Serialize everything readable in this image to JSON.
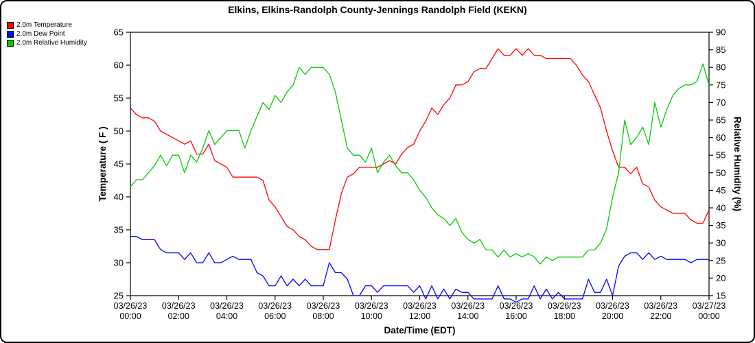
{
  "chart_data": {
    "type": "line",
    "title": "Elkins, Elkins-Randolph County-Jennings Randolph Field (KEKN)",
    "xlabel": "Date/Time (EDT)",
    "grid": false,
    "legend_position": "top-left",
    "left_axis": {
      "label": "Temperature ( F )",
      "min": 25,
      "max": 65,
      "ticks": [
        25,
        30,
        35,
        40,
        45,
        50,
        55,
        60,
        65
      ]
    },
    "right_axis": {
      "label": "Relative Humidity (%)",
      "min": 15,
      "max": 90,
      "ticks": [
        15,
        20,
        25,
        30,
        35,
        40,
        45,
        50,
        55,
        60,
        65,
        70,
        75,
        80,
        85,
        90
      ]
    },
    "x_axis": {
      "start_hour": 0,
      "end_hour": 24,
      "step_hours": 0.25,
      "tick_labels": [
        {
          "hour": 0,
          "date": "03/26/23",
          "time": "00:00"
        },
        {
          "hour": 2,
          "date": "03/26/23",
          "time": "02:00"
        },
        {
          "hour": 4,
          "date": "03/26/23",
          "time": "04:00"
        },
        {
          "hour": 6,
          "date": "03/26/23",
          "time": "06:00"
        },
        {
          "hour": 8,
          "date": "03/26/23",
          "time": "08:00"
        },
        {
          "hour": 10,
          "date": "03/26/23",
          "time": "10:00"
        },
        {
          "hour": 12,
          "date": "03/26/23",
          "time": "12:00"
        },
        {
          "hour": 14,
          "date": "03/26/23",
          "time": "14:00"
        },
        {
          "hour": 16,
          "date": "03/26/23",
          "time": "16:00"
        },
        {
          "hour": 18,
          "date": "03/26/23",
          "time": "18:00"
        },
        {
          "hour": 20,
          "date": "03/26/23",
          "time": "20:00"
        },
        {
          "hour": 22,
          "date": "03/26/23",
          "time": "22:00"
        },
        {
          "hour": 24,
          "date": "03/27/23",
          "time": "00:00"
        }
      ]
    },
    "series": [
      {
        "name": "2.0m Temperature",
        "axis": "left",
        "color": "#ff0000",
        "values": [
          53.5,
          52.5,
          52,
          52,
          51.5,
          50,
          49.5,
          49,
          48.5,
          48,
          48.5,
          46.5,
          46.5,
          48,
          45.5,
          45,
          44.5,
          43,
          43,
          43,
          43,
          43,
          42.5,
          39.5,
          38.5,
          37,
          35.5,
          35,
          34,
          33.5,
          32.5,
          32,
          32,
          32,
          36.5,
          40.5,
          43,
          43.5,
          44.5,
          44.5,
          44.5,
          44.5,
          45,
          45.5,
          45,
          46.5,
          47.5,
          48,
          50,
          51.5,
          53.5,
          52.5,
          54,
          55,
          57,
          57,
          57.5,
          59,
          59.5,
          59.5,
          61,
          62.5,
          61.5,
          61.5,
          62.5,
          61.5,
          62.5,
          61.5,
          61.5,
          61,
          61,
          61,
          61,
          61,
          60,
          58.5,
          57.5,
          55.5,
          53.5,
          50,
          47,
          44.5,
          44.5,
          43.5,
          44.5,
          42,
          41.5,
          39.5,
          38.5,
          38,
          37.5,
          37.5,
          37.5,
          36.5,
          36,
          36,
          38
        ]
      },
      {
        "name": "2.0m Dew Point",
        "axis": "left",
        "color": "#0000ff",
        "values": [
          34,
          34,
          33.5,
          33.5,
          33.5,
          32,
          31.5,
          31.5,
          31.5,
          30.5,
          31.5,
          30,
          30,
          31.5,
          30,
          30,
          30.5,
          31,
          30.5,
          30.5,
          30.5,
          28.5,
          28,
          26.5,
          26.5,
          28,
          26.5,
          27.5,
          26.5,
          27.5,
          26.5,
          26.5,
          26.5,
          30,
          28.5,
          28.5,
          27.5,
          25,
          25,
          26.5,
          26.5,
          25.5,
          26.5,
          26.5,
          26.5,
          26.5,
          26.5,
          25.5,
          26.5,
          24.5,
          26.5,
          24.5,
          26,
          24.5,
          26,
          25.5,
          25.5,
          24.5,
          24.5,
          24.5,
          24.5,
          26.5,
          24.5,
          24.5,
          24,
          24.5,
          24.5,
          26.5,
          24.5,
          26,
          24.5,
          25.5,
          24.5,
          24.5,
          24.5,
          24.5,
          27.5,
          25.5,
          25.5,
          27.5,
          25,
          29.5,
          31,
          31.5,
          31.5,
          30.5,
          31.5,
          30.5,
          31,
          30.5,
          30.5,
          30.5,
          30.5,
          30,
          30.5,
          30.5,
          30.5
        ]
      },
      {
        "name": "2.0m Relative Humidity",
        "axis": "right",
        "color": "#00cc00",
        "values": [
          46,
          48,
          48,
          50,
          52,
          55,
          52,
          55,
          55,
          50,
          55,
          53,
          57,
          62,
          58,
          60,
          62,
          62,
          62,
          57,
          62,
          66,
          70,
          68,
          72,
          70,
          73,
          75,
          80,
          78,
          80,
          80,
          80,
          78,
          73,
          65,
          57,
          55,
          55,
          53,
          57,
          50,
          53,
          55,
          52,
          50,
          50,
          48,
          45,
          43,
          40,
          38,
          37,
          35,
          37,
          33,
          31,
          30,
          31,
          28,
          28,
          26,
          28,
          26,
          27,
          26,
          27,
          26,
          24,
          26,
          25,
          26,
          26,
          26,
          26,
          26,
          28,
          28,
          30,
          34,
          43,
          50,
          65,
          58,
          60,
          63,
          58,
          70,
          63,
          68,
          72,
          74,
          75,
          75,
          76,
          81,
          75
        ]
      }
    ]
  }
}
